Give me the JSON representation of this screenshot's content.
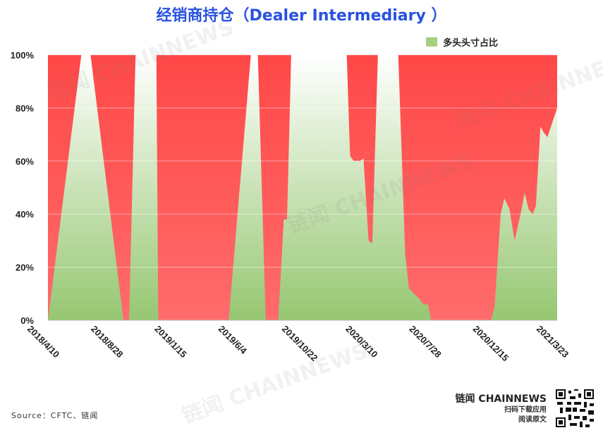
{
  "title": "经销商持仓（Dealer Intermediary ）",
  "legend": {
    "label": "多头头寸占比",
    "color": "#a7d07f"
  },
  "source": "Source：CFTC、链闻",
  "brand": {
    "name": "链闻 CHAINNEWS",
    "line1": "扫码下载应用",
    "line2": "阅读原文"
  },
  "watermark": "链闻 CHAINNEWS",
  "colors": {
    "background_fill": "#ff4a4a",
    "series_top": "#ffffff",
    "series_bottom": "#96c771"
  },
  "chart_data": {
    "type": "area",
    "title": "经销商持仓（Dealer Intermediary ）",
    "xlabel": "",
    "ylabel": "",
    "ylim": [
      0,
      100
    ],
    "y_ticks": [
      "0%",
      "20%",
      "40%",
      "60%",
      "80%",
      "100%"
    ],
    "x_ticks": [
      "2018/4/10",
      "2018/8/28",
      "2019/1/15",
      "2019/6/4",
      "2019/10/22",
      "2020/3/10",
      "2020/7/28",
      "2020/12/15",
      "2021/3/23"
    ],
    "x_range": [
      "2018-04-10",
      "2021-04-13"
    ],
    "grid": true,
    "legend_position": "top-right",
    "series": [
      {
        "name": "多头头寸占比",
        "points": [
          [
            "2018-04-10",
            0
          ],
          [
            "2018-06-21",
            100
          ],
          [
            "2018-07-11",
            100
          ],
          [
            "2018-09-20",
            0
          ],
          [
            "2018-10-02",
            0
          ],
          [
            "2018-10-16",
            100
          ],
          [
            "2018-11-30",
            100
          ],
          [
            "2018-12-04",
            0
          ],
          [
            "2019-05-05",
            0
          ],
          [
            "2019-06-22",
            100
          ],
          [
            "2019-07-07",
            100
          ],
          [
            "2019-07-24",
            0
          ],
          [
            "2019-08-20",
            0
          ],
          [
            "2019-09-01",
            38
          ],
          [
            "2019-09-08",
            38
          ],
          [
            "2019-09-17",
            100
          ],
          [
            "2020-01-15",
            100
          ],
          [
            "2020-01-22",
            62
          ],
          [
            "2020-01-30",
            60
          ],
          [
            "2020-02-12",
            60
          ],
          [
            "2020-02-20",
            61
          ],
          [
            "2020-03-02",
            30
          ],
          [
            "2020-03-10",
            29
          ],
          [
            "2020-03-22",
            100
          ],
          [
            "2020-05-05",
            100
          ],
          [
            "2020-05-20",
            25
          ],
          [
            "2020-05-28",
            12
          ],
          [
            "2020-06-08",
            10
          ],
          [
            "2020-06-20",
            8
          ],
          [
            "2020-06-28",
            6
          ],
          [
            "2020-07-08",
            6
          ],
          [
            "2020-07-15",
            0
          ],
          [
            "2020-11-21",
            0
          ],
          [
            "2020-11-29",
            5
          ],
          [
            "2020-12-12",
            40
          ],
          [
            "2020-12-20",
            46
          ],
          [
            "2020-12-31",
            42
          ],
          [
            "2021-01-11",
            30
          ],
          [
            "2021-01-24",
            40
          ],
          [
            "2021-02-02",
            48
          ],
          [
            "2021-02-10",
            42
          ],
          [
            "2021-02-19",
            40
          ],
          [
            "2021-02-26",
            43
          ],
          [
            "2021-03-08",
            73
          ],
          [
            "2021-03-14",
            71
          ],
          [
            "2021-03-23",
            69
          ],
          [
            "2021-04-13",
            80
          ]
        ]
      }
    ]
  }
}
